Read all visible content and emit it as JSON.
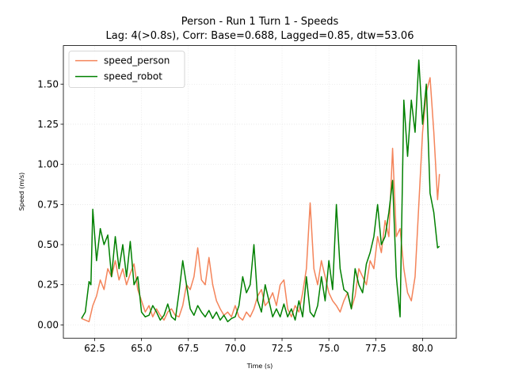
{
  "chart_data": {
    "type": "line",
    "title": "Person - Run 1 Turn 1 - Speeds",
    "subtitle": "Lag: 4(>0.8s), Corr: Base=0.688, Lagged=0.85, dtw=53.06",
    "x_label": "Time (s)",
    "y_label": "Speed (m/s)",
    "xlim": [
      60.83,
      81.8
    ],
    "ylim": [
      -0.083,
      1.74
    ],
    "xticks": [
      {
        "value": 62.5,
        "label": "62.5"
      },
      {
        "value": 65,
        "label": "65.0"
      },
      {
        "value": 67.5,
        "label": "67.5"
      },
      {
        "value": 70,
        "label": "70.0"
      },
      {
        "value": 72.5,
        "label": "72.5"
      },
      {
        "value": 75,
        "label": "75.0"
      },
      {
        "value": 77.5,
        "label": "77.5"
      },
      {
        "value": 80,
        "label": "80.0"
      }
    ],
    "yticks": [
      {
        "value": 0,
        "label": "0.00"
      },
      {
        "value": 0.25,
        "label": "0.25"
      },
      {
        "value": 0.5,
        "label": "0.50"
      },
      {
        "value": 0.75,
        "label": "0.75"
      },
      {
        "value": 1,
        "label": "1.00"
      },
      {
        "value": 1.25,
        "label": "1.25"
      },
      {
        "value": 1.5,
        "label": "1.50"
      }
    ],
    "grid": true,
    "legend": "upper left",
    "series": [
      {
        "name": "speed_person",
        "color": "#f4845a",
        "x": [
          61.8,
          62.0,
          62.2,
          62.4,
          62.6,
          62.8,
          63.0,
          63.2,
          63.4,
          63.6,
          63.8,
          64.0,
          64.2,
          64.4,
          64.6,
          64.8,
          65.0,
          65.2,
          65.4,
          65.6,
          65.8,
          66.0,
          66.2,
          66.4,
          66.6,
          66.8,
          67.0,
          67.2,
          67.4,
          67.6,
          67.8,
          68.0,
          68.2,
          68.4,
          68.6,
          68.8,
          69.0,
          69.2,
          69.4,
          69.6,
          69.8,
          70.0,
          70.2,
          70.4,
          70.6,
          70.8,
          71.0,
          71.2,
          71.4,
          71.6,
          71.8,
          72.0,
          72.2,
          72.4,
          72.6,
          72.8,
          73.0,
          73.2,
          73.4,
          73.6,
          73.8,
          74.0,
          74.2,
          74.4,
          74.6,
          74.8,
          75.0,
          75.2,
          75.4,
          75.6,
          75.8,
          76.0,
          76.2,
          76.4,
          76.6,
          76.8,
          77.0,
          77.2,
          77.4,
          77.6,
          77.8,
          78.0,
          78.2,
          78.4,
          78.6,
          78.8,
          79.0,
          79.2,
          79.4,
          79.6,
          79.8,
          80.0,
          80.2,
          80.4,
          80.6,
          80.8,
          80.9
        ],
        "values": [
          0.04,
          0.03,
          0.02,
          0.12,
          0.18,
          0.28,
          0.22,
          0.35,
          0.3,
          0.4,
          0.28,
          0.35,
          0.25,
          0.32,
          0.38,
          0.22,
          0.15,
          0.08,
          0.12,
          0.05,
          0.1,
          0.06,
          0.03,
          0.08,
          0.1,
          0.06,
          0.05,
          0.12,
          0.25,
          0.22,
          0.3,
          0.48,
          0.28,
          0.25,
          0.42,
          0.25,
          0.15,
          0.1,
          0.06,
          0.08,
          0.05,
          0.12,
          0.05,
          0.03,
          0.08,
          0.05,
          0.1,
          0.18,
          0.22,
          0.12,
          0.15,
          0.2,
          0.12,
          0.25,
          0.28,
          0.1,
          0.05,
          0.12,
          0.08,
          0.2,
          0.35,
          0.76,
          0.35,
          0.25,
          0.4,
          0.3,
          0.2,
          0.15,
          0.12,
          0.08,
          0.15,
          0.2,
          0.1,
          0.18,
          0.35,
          0.3,
          0.25,
          0.4,
          0.35,
          0.55,
          0.45,
          0.65,
          0.55,
          1.1,
          0.55,
          0.6,
          0.35,
          0.2,
          0.15,
          0.3,
          0.75,
          1.2,
          1.45,
          1.54,
          1.2,
          0.78,
          0.94
        ]
      },
      {
        "name": "speed_robot",
        "color": "#008000",
        "x": [
          61.8,
          62.0,
          62.2,
          62.3,
          62.4,
          62.6,
          62.8,
          63.0,
          63.2,
          63.4,
          63.6,
          63.8,
          64.0,
          64.2,
          64.4,
          64.6,
          64.8,
          65.0,
          65.2,
          65.4,
          65.6,
          65.8,
          66.0,
          66.2,
          66.4,
          66.6,
          66.8,
          67.0,
          67.2,
          67.4,
          67.6,
          67.8,
          68.0,
          68.2,
          68.4,
          68.6,
          68.8,
          69.0,
          69.2,
          69.4,
          69.6,
          69.8,
          70.0,
          70.2,
          70.4,
          70.6,
          70.8,
          71.0,
          71.2,
          71.4,
          71.6,
          71.8,
          72.0,
          72.2,
          72.4,
          72.6,
          72.8,
          73.0,
          73.2,
          73.4,
          73.6,
          73.8,
          74.0,
          74.2,
          74.4,
          74.6,
          74.8,
          75.0,
          75.2,
          75.4,
          75.6,
          75.8,
          76.0,
          76.2,
          76.4,
          76.6,
          76.8,
          77.0,
          77.2,
          77.4,
          77.6,
          77.8,
          78.0,
          78.2,
          78.4,
          78.6,
          78.8,
          79.0,
          79.2,
          79.4,
          79.6,
          79.8,
          80.0,
          80.2,
          80.4,
          80.6,
          80.8,
          80.9
        ],
        "values": [
          0.04,
          0.08,
          0.27,
          0.25,
          0.72,
          0.4,
          0.6,
          0.5,
          0.56,
          0.3,
          0.55,
          0.35,
          0.5,
          0.3,
          0.52,
          0.25,
          0.3,
          0.08,
          0.05,
          0.06,
          0.12,
          0.08,
          0.03,
          0.06,
          0.13,
          0.05,
          0.03,
          0.2,
          0.4,
          0.25,
          0.1,
          0.06,
          0.12,
          0.08,
          0.05,
          0.09,
          0.04,
          0.08,
          0.03,
          0.06,
          0.02,
          0.04,
          0.05,
          0.12,
          0.3,
          0.2,
          0.25,
          0.5,
          0.15,
          0.08,
          0.25,
          0.15,
          0.05,
          0.1,
          0.05,
          0.13,
          0.05,
          0.1,
          0.03,
          0.15,
          0.05,
          0.3,
          0.08,
          0.05,
          0.12,
          0.3,
          0.15,
          0.4,
          0.22,
          0.75,
          0.35,
          0.22,
          0.2,
          0.1,
          0.35,
          0.25,
          0.2,
          0.38,
          0.45,
          0.55,
          0.75,
          0.5,
          0.55,
          0.7,
          0.9,
          0.3,
          0.05,
          1.4,
          1.05,
          1.4,
          1.2,
          1.65,
          1.25,
          1.5,
          0.82,
          0.7,
          0.48,
          0.49
        ]
      }
    ]
  }
}
